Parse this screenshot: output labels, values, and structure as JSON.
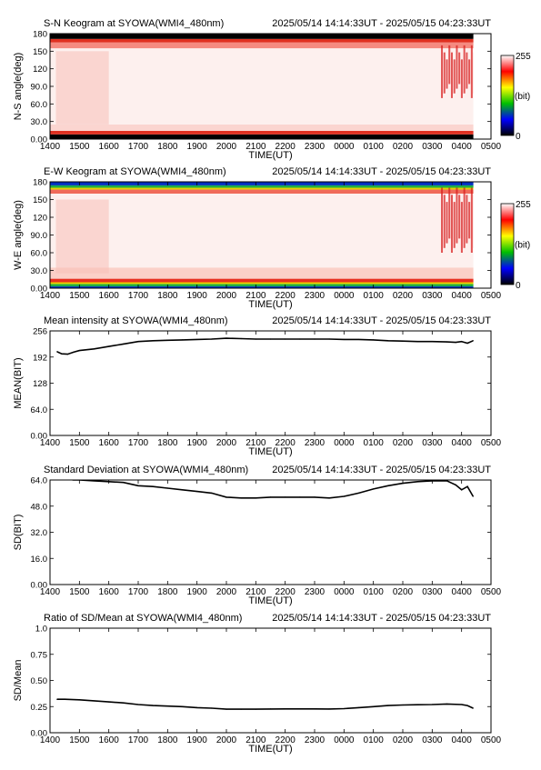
{
  "page": {
    "time_range": "2025/05/14 14:14:33UT - 2025/05/15 04:23:33UT"
  },
  "colorbar": {
    "max_label": "255",
    "min_label": "0",
    "unit_label": "(bit)",
    "colors": [
      "#000000",
      "#0000ff",
      "#00c000",
      "#ffff00",
      "#ff0000",
      "#ffffff"
    ]
  },
  "xaxis_common": {
    "label": "TIME(UT)",
    "ticks": [
      "1400",
      "1500",
      "1600",
      "1700",
      "1800",
      "1900",
      "2000",
      "2100",
      "2200",
      "2300",
      "0000",
      "0100",
      "0200",
      "0300",
      "0400",
      "0500"
    ]
  },
  "chart_data": [
    {
      "type": "heatmap",
      "title": "S-N Keogram at SYOWA(WMI4_480nm)",
      "subtitle": "2025/05/14 14:14:33UT - 2025/05/15 04:23:33UT",
      "xlabel": "TIME(UT)",
      "ylabel": "N-S angle(deg)",
      "xlim": [
        14.0,
        29.0
      ],
      "ylim": [
        0,
        180
      ],
      "yticks": [
        "0.00",
        "30.0",
        "60.0",
        "90.0",
        "120",
        "150",
        "180"
      ],
      "colorscale_range": [
        0,
        255
      ],
      "data_end_hour": 28.4,
      "band_rows": [
        {
          "deg": [
            0,
            8
          ],
          "color": "#000000"
        },
        {
          "deg": [
            8,
            14
          ],
          "color": "#e03020"
        },
        {
          "deg": [
            14,
            25
          ],
          "color": "#fbd5d0"
        },
        {
          "deg": [
            25,
            155
          ],
          "color": "#fdf0ee"
        },
        {
          "deg": [
            155,
            165
          ],
          "color": "#f58a80"
        },
        {
          "deg": [
            165,
            171
          ],
          "color": "#e03020"
        },
        {
          "deg": [
            171,
            180
          ],
          "color": "#000000"
        }
      ],
      "early_bright_region": {
        "hours": [
          14.2,
          16.0
        ],
        "color": "#f8c0b8"
      },
      "aurora_region": {
        "hours": [
          27.3,
          28.4
        ],
        "deg": [
          70,
          160
        ],
        "color": "#d82020"
      }
    },
    {
      "type": "heatmap",
      "title": "E-W Keogram at SYOWA(WMI4_480nm)",
      "subtitle": "2025/05/14 14:14:33UT - 2025/05/15 04:23:33UT",
      "xlabel": "TIME(UT)",
      "ylabel": "W-E angle(deg)",
      "xlim": [
        14.0,
        29.0
      ],
      "ylim": [
        0,
        180
      ],
      "yticks": [
        "0.00",
        "30.0",
        "60.0",
        "90.0",
        "120",
        "150",
        "180"
      ],
      "colorscale_range": [
        0,
        255
      ],
      "data_end_hour": 28.4,
      "band_rows": [
        {
          "deg": [
            0,
            3
          ],
          "color": "#0030c0"
        },
        {
          "deg": [
            3,
            7
          ],
          "color": "#20b040"
        },
        {
          "deg": [
            7,
            10
          ],
          "color": "#e8d000"
        },
        {
          "deg": [
            10,
            16
          ],
          "color": "#e83020"
        },
        {
          "deg": [
            16,
            35
          ],
          "color": "#fbd0c8"
        },
        {
          "deg": [
            35,
            160
          ],
          "color": "#fdf0ee"
        },
        {
          "deg": [
            160,
            167
          ],
          "color": "#f06a5a"
        },
        {
          "deg": [
            167,
            170
          ],
          "color": "#e8d000"
        },
        {
          "deg": [
            170,
            174
          ],
          "color": "#20b040"
        },
        {
          "deg": [
            174,
            180
          ],
          "color": "#0030c0"
        }
      ],
      "early_bright_region": {
        "hours": [
          14.2,
          16.0
        ],
        "color": "#f8c0b8"
      },
      "aurora_region": {
        "hours": [
          27.3,
          28.4
        ],
        "deg": [
          60,
          170
        ],
        "color": "#d82020"
      }
    },
    {
      "type": "line",
      "title": "Mean intensity at SYOWA(WMI4_480nm)",
      "subtitle": "2025/05/14 14:14:33UT - 2025/05/15 04:23:33UT",
      "xlabel": "TIME(UT)",
      "ylabel": "MEAN(BIT)",
      "xlim": [
        14.0,
        29.0
      ],
      "ylim": [
        0,
        256
      ],
      "yticks": [
        "0.00",
        "64.0",
        "128",
        "192",
        "256"
      ],
      "x": [
        14.24,
        14.4,
        14.6,
        14.8,
        15.0,
        15.5,
        16.0,
        16.5,
        17.0,
        17.5,
        18.0,
        18.5,
        19.0,
        19.5,
        20.0,
        20.5,
        21.0,
        21.5,
        22.0,
        22.5,
        23.0,
        23.5,
        24.0,
        24.5,
        25.0,
        25.5,
        26.0,
        26.5,
        27.0,
        27.5,
        27.8,
        28.0,
        28.2,
        28.39
      ],
      "y": [
        205,
        200,
        199,
        204,
        208,
        212,
        218,
        224,
        230,
        232,
        233,
        234,
        235,
        236,
        238,
        237,
        236,
        236,
        236,
        236,
        236,
        236,
        235,
        235,
        234,
        232,
        231,
        230,
        230,
        229,
        228,
        230,
        226,
        232
      ]
    },
    {
      "type": "line",
      "title": "Standard Deviation at SYOWA(WMI4_480nm)",
      "subtitle": "2025/05/14 14:14:33UT - 2025/05/15 04:23:33UT",
      "xlabel": "TIME(UT)",
      "ylabel": "SD(BIT)",
      "xlim": [
        14.0,
        29.0
      ],
      "ylim": [
        0,
        64
      ],
      "yticks": [
        "0.00",
        "16.0",
        "32.0",
        "48.0",
        "64.0"
      ],
      "x": [
        14.24,
        14.4,
        14.6,
        14.8,
        15.0,
        15.5,
        16.0,
        16.5,
        17.0,
        17.5,
        18.0,
        18.5,
        19.0,
        19.5,
        20.0,
        20.5,
        21.0,
        21.5,
        22.0,
        22.5,
        23.0,
        23.5,
        24.0,
        24.5,
        25.0,
        25.5,
        26.0,
        26.5,
        27.0,
        27.5,
        27.8,
        28.0,
        28.2,
        28.39
      ],
      "y": [
        65,
        64.5,
        64.5,
        64,
        64,
        63.5,
        63,
        62.5,
        60.5,
        60,
        59,
        58,
        57,
        56,
        53.5,
        53,
        53,
        53.5,
        53.5,
        53.5,
        53.5,
        53,
        54,
        56,
        58.5,
        60.5,
        62,
        63,
        63.5,
        63.5,
        61,
        58,
        60,
        54
      ]
    },
    {
      "type": "line",
      "title": "Ratio of SD/Mean at SYOWA(WMI4_480nm)",
      "subtitle": "2025/05/14 14:14:33UT - 2025/05/15 04:23:33UT",
      "xlabel": "TIME(UT)",
      "ylabel": "SD/Mean",
      "xlim": [
        14.0,
        29.0
      ],
      "ylim": [
        0,
        1.0
      ],
      "yticks": [
        "0.00",
        "0.25",
        "0.50",
        "0.75",
        "1.0"
      ],
      "x": [
        14.24,
        14.5,
        15.0,
        15.5,
        16.0,
        16.5,
        17.0,
        17.5,
        18.0,
        18.5,
        19.0,
        19.5,
        20.0,
        20.5,
        21.0,
        21.5,
        22.0,
        22.5,
        23.0,
        23.5,
        24.0,
        24.5,
        25.0,
        25.5,
        26.0,
        26.5,
        27.0,
        27.5,
        28.0,
        28.2,
        28.39
      ],
      "y": [
        0.32,
        0.32,
        0.315,
        0.305,
        0.295,
        0.285,
        0.27,
        0.26,
        0.255,
        0.25,
        0.24,
        0.235,
        0.225,
        0.225,
        0.225,
        0.227,
        0.228,
        0.228,
        0.228,
        0.227,
        0.23,
        0.24,
        0.25,
        0.26,
        0.265,
        0.268,
        0.27,
        0.275,
        0.27,
        0.26,
        0.235
      ]
    }
  ]
}
